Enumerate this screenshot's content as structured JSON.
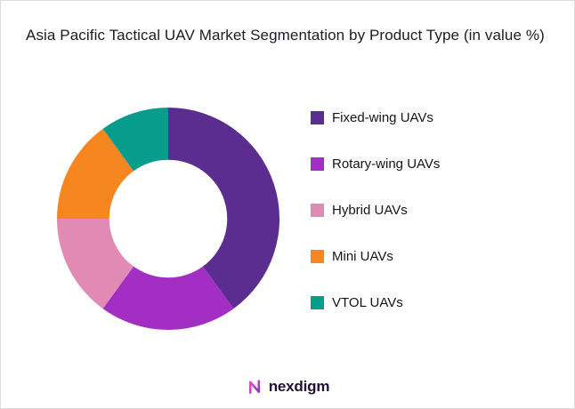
{
  "title": "Asia Pacific Tactical UAV Market Segmentation by Product Type (in value %)",
  "chart_data": {
    "type": "pie",
    "subtype": "donut",
    "title": "Asia Pacific Tactical UAV Market Segmentation by Product Type (in value %)",
    "labels": [
      "Fixed-wing UAVs",
      "Rotary-wing UAVs",
      "Hybrid UAVs",
      "Mini UAVs",
      "VTOL UAVs"
    ],
    "values": [
      40,
      20,
      15,
      15,
      10
    ],
    "unit": "%",
    "colors": [
      "#5B2D90",
      "#A32EC4",
      "#E18BB4",
      "#F6861F",
      "#089C8D"
    ],
    "start_angle_deg": -90,
    "direction": "clockwise",
    "inner_radius_ratio": 0.53,
    "legend_position": "right",
    "grid": false
  },
  "footer": {
    "brand": "nexdigm",
    "brand_text_color": "#241036",
    "mark_color_start": "#E94FD0",
    "mark_color_end": "#8B2FC9"
  }
}
